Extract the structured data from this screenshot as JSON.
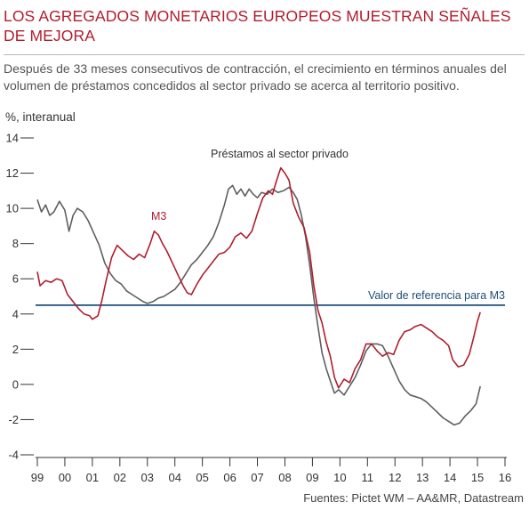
{
  "header": {
    "title": "LOS AGREGADOS MONETARIOS EUROPEOS MUESTRAN SEÑALES DE MEJORA",
    "subtitle": "Después de 33 meses consecutivos de contracción, el crecimiento en términos anuales del volumen de préstamos concedidos al sector privado se acerca al territorio positivo."
  },
  "footer": {
    "source": "Fuentes: Pictet WM – AA&MR, Datastream"
  },
  "colors": {
    "m3": "#b01e2f",
    "loans": "#5f5f5f",
    "reference": "#1f4e79",
    "title": "#b01e2f"
  },
  "chart_data": {
    "type": "line",
    "ylabel": "%, interanual",
    "ylim": [
      -4,
      14
    ],
    "yticks": [
      "14",
      "12",
      "10",
      "8",
      "6",
      "4",
      "2",
      "0",
      "-2",
      "-4"
    ],
    "xlim": [
      1999,
      2016
    ],
    "xticks": [
      "99",
      "00",
      "01",
      "02",
      "03",
      "04",
      "05",
      "06",
      "07",
      "08",
      "09",
      "10",
      "11",
      "12",
      "13",
      "14",
      "15",
      "16"
    ],
    "grid": false,
    "reference_line": {
      "label": "Valor de referencia para M3",
      "y": 4.5
    },
    "series": [
      {
        "name": "M3",
        "color": "#b01e2f",
        "points": [
          [
            1999.0,
            6.4
          ],
          [
            1999.1,
            5.6
          ],
          [
            1999.3,
            5.9
          ],
          [
            1999.5,
            5.8
          ],
          [
            1999.7,
            6.0
          ],
          [
            1999.9,
            5.9
          ],
          [
            2000.1,
            5.1
          ],
          [
            2000.3,
            4.7
          ],
          [
            2000.5,
            4.3
          ],
          [
            2000.7,
            4.0
          ],
          [
            2000.9,
            3.9
          ],
          [
            2001.0,
            3.7
          ],
          [
            2001.2,
            3.9
          ],
          [
            2001.35,
            4.8
          ],
          [
            2001.5,
            5.9
          ],
          [
            2001.7,
            7.2
          ],
          [
            2001.9,
            7.9
          ],
          [
            2002.1,
            7.6
          ],
          [
            2002.3,
            7.3
          ],
          [
            2002.5,
            7.1
          ],
          [
            2002.7,
            7.4
          ],
          [
            2002.9,
            7.2
          ],
          [
            2003.1,
            8.0
          ],
          [
            2003.25,
            8.7
          ],
          [
            2003.4,
            8.5
          ],
          [
            2003.55,
            8.0
          ],
          [
            2003.7,
            7.6
          ],
          [
            2003.85,
            7.1
          ],
          [
            2004.0,
            6.6
          ],
          [
            2004.15,
            6.1
          ],
          [
            2004.3,
            5.6
          ],
          [
            2004.45,
            5.2
          ],
          [
            2004.6,
            5.1
          ],
          [
            2004.8,
            5.7
          ],
          [
            2005.0,
            6.2
          ],
          [
            2005.2,
            6.6
          ],
          [
            2005.4,
            7.0
          ],
          [
            2005.6,
            7.4
          ],
          [
            2005.8,
            7.5
          ],
          [
            2006.0,
            7.8
          ],
          [
            2006.2,
            8.4
          ],
          [
            2006.4,
            8.6
          ],
          [
            2006.6,
            8.3
          ],
          [
            2006.8,
            8.7
          ],
          [
            2007.0,
            9.7
          ],
          [
            2007.2,
            10.6
          ],
          [
            2007.4,
            11.0
          ],
          [
            2007.55,
            10.8
          ],
          [
            2007.7,
            11.6
          ],
          [
            2007.85,
            12.3
          ],
          [
            2008.0,
            12.0
          ],
          [
            2008.15,
            11.6
          ],
          [
            2008.3,
            10.3
          ],
          [
            2008.5,
            9.5
          ],
          [
            2008.7,
            8.9
          ],
          [
            2008.9,
            7.5
          ],
          [
            2009.05,
            5.6
          ],
          [
            2009.2,
            4.2
          ],
          [
            2009.35,
            3.5
          ],
          [
            2009.5,
            2.4
          ],
          [
            2009.65,
            1.6
          ],
          [
            2009.8,
            0.4
          ],
          [
            2009.95,
            -0.2
          ],
          [
            2010.15,
            0.3
          ],
          [
            2010.35,
            0.1
          ],
          [
            2010.55,
            0.9
          ],
          [
            2010.75,
            1.4
          ],
          [
            2010.95,
            2.3
          ],
          [
            2011.15,
            2.3
          ],
          [
            2011.35,
            1.9
          ],
          [
            2011.55,
            1.6
          ],
          [
            2011.75,
            1.8
          ],
          [
            2011.95,
            1.7
          ],
          [
            2012.15,
            2.5
          ],
          [
            2012.35,
            3.0
          ],
          [
            2012.55,
            3.1
          ],
          [
            2012.75,
            3.3
          ],
          [
            2012.95,
            3.4
          ],
          [
            2013.15,
            3.2
          ],
          [
            2013.35,
            3.0
          ],
          [
            2013.55,
            2.7
          ],
          [
            2013.75,
            2.5
          ],
          [
            2013.95,
            2.2
          ],
          [
            2014.1,
            1.4
          ],
          [
            2014.3,
            1.0
          ],
          [
            2014.5,
            1.1
          ],
          [
            2014.7,
            1.7
          ],
          [
            2014.85,
            2.6
          ],
          [
            2015.0,
            3.6
          ],
          [
            2015.1,
            4.1
          ]
        ]
      },
      {
        "name": "Préstamos al sector privado",
        "color": "#5f5f5f",
        "points": [
          [
            1999.0,
            10.5
          ],
          [
            1999.15,
            9.8
          ],
          [
            1999.3,
            10.2
          ],
          [
            1999.45,
            9.6
          ],
          [
            1999.6,
            9.8
          ],
          [
            1999.8,
            10.4
          ],
          [
            2000.0,
            9.9
          ],
          [
            2000.15,
            8.7
          ],
          [
            2000.3,
            9.6
          ],
          [
            2000.45,
            10.0
          ],
          [
            2000.65,
            9.8
          ],
          [
            2000.85,
            9.3
          ],
          [
            2001.05,
            8.6
          ],
          [
            2001.25,
            7.9
          ],
          [
            2001.45,
            6.9
          ],
          [
            2001.65,
            6.3
          ],
          [
            2001.85,
            5.9
          ],
          [
            2002.05,
            5.7
          ],
          [
            2002.25,
            5.3
          ],
          [
            2002.45,
            5.1
          ],
          [
            2002.65,
            4.9
          ],
          [
            2002.85,
            4.7
          ],
          [
            2003.0,
            4.6
          ],
          [
            2003.2,
            4.7
          ],
          [
            2003.4,
            4.9
          ],
          [
            2003.6,
            5.0
          ],
          [
            2003.8,
            5.2
          ],
          [
            2004.0,
            5.4
          ],
          [
            2004.2,
            5.8
          ],
          [
            2004.4,
            6.3
          ],
          [
            2004.6,
            6.8
          ],
          [
            2004.8,
            7.1
          ],
          [
            2005.0,
            7.5
          ],
          [
            2005.2,
            7.9
          ],
          [
            2005.4,
            8.4
          ],
          [
            2005.6,
            9.2
          ],
          [
            2005.8,
            10.2
          ],
          [
            2005.95,
            11.1
          ],
          [
            2006.1,
            11.3
          ],
          [
            2006.25,
            10.8
          ],
          [
            2006.4,
            11.1
          ],
          [
            2006.55,
            10.7
          ],
          [
            2006.7,
            11.1
          ],
          [
            2006.85,
            10.8
          ],
          [
            2007.0,
            10.6
          ],
          [
            2007.15,
            10.9
          ],
          [
            2007.35,
            10.8
          ],
          [
            2007.55,
            11.1
          ],
          [
            2007.75,
            10.9
          ],
          [
            2007.95,
            11.0
          ],
          [
            2008.15,
            11.2
          ],
          [
            2008.3,
            10.9
          ],
          [
            2008.45,
            10.5
          ],
          [
            2008.6,
            9.6
          ],
          [
            2008.75,
            8.4
          ],
          [
            2008.9,
            6.8
          ],
          [
            2009.05,
            4.9
          ],
          [
            2009.2,
            3.3
          ],
          [
            2009.35,
            1.8
          ],
          [
            2009.5,
            0.9
          ],
          [
            2009.65,
            0.2
          ],
          [
            2009.8,
            -0.5
          ],
          [
            2009.95,
            -0.3
          ],
          [
            2010.15,
            -0.6
          ],
          [
            2010.35,
            -0.1
          ],
          [
            2010.55,
            0.4
          ],
          [
            2010.75,
            1.1
          ],
          [
            2010.95,
            1.9
          ],
          [
            2011.15,
            2.3
          ],
          [
            2011.35,
            2.3
          ],
          [
            2011.55,
            2.2
          ],
          [
            2011.75,
            1.6
          ],
          [
            2011.95,
            0.9
          ],
          [
            2012.15,
            0.2
          ],
          [
            2012.35,
            -0.3
          ],
          [
            2012.55,
            -0.6
          ],
          [
            2012.75,
            -0.7
          ],
          [
            2012.95,
            -0.8
          ],
          [
            2013.15,
            -1.0
          ],
          [
            2013.35,
            -1.3
          ],
          [
            2013.55,
            -1.6
          ],
          [
            2013.75,
            -1.9
          ],
          [
            2013.95,
            -2.1
          ],
          [
            2014.15,
            -2.3
          ],
          [
            2014.35,
            -2.2
          ],
          [
            2014.55,
            -1.8
          ],
          [
            2014.75,
            -1.5
          ],
          [
            2014.95,
            -1.1
          ],
          [
            2015.1,
            -0.1
          ]
        ]
      }
    ],
    "annotations": [
      {
        "text": "Préstamos al sector privado",
        "series": "Préstamos al sector privado"
      },
      {
        "text": "M3",
        "series": "M3"
      }
    ]
  }
}
